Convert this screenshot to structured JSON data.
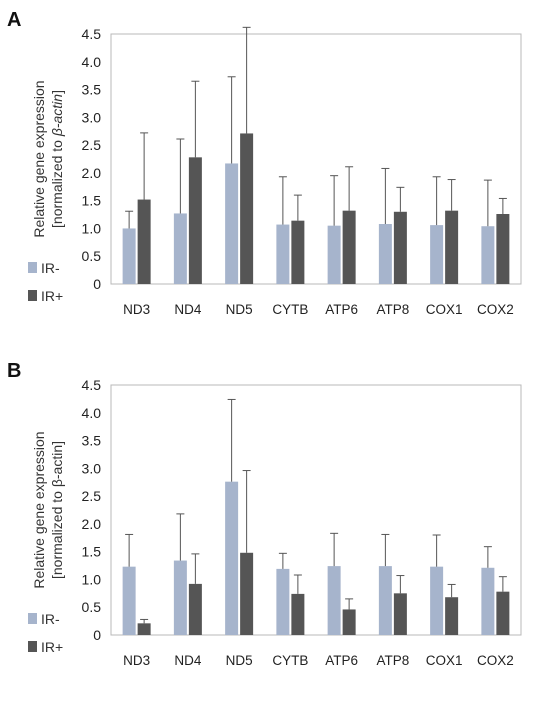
{
  "colors": {
    "ir_minus": "#a6b4cc",
    "ir_plus": "#555555",
    "frame": "#b8b8b8",
    "error_bar": "#555555"
  },
  "chart_data": [
    {
      "panel_label": "A",
      "type": "bar",
      "categories": [
        "ND3",
        "ND4",
        "ND5",
        "CYTB",
        "ATP6",
        "ATP8",
        "COX1",
        "COX2"
      ],
      "yticks": [
        "0",
        "0.5",
        "1.0",
        "1.5",
        "2.0",
        "2.5",
        "3.0",
        "3.5",
        "4.0",
        "4.5"
      ],
      "ylim": [
        0,
        4.5
      ],
      "ylabel_line1": "Relative gene expression",
      "ylabel_line2_prefix": "[normalized to ",
      "ylabel_line2_italic": "β-actin",
      "ylabel_line2_suffix": "]",
      "grid": false,
      "legend_position": "left",
      "series": [
        {
          "name": "IR-",
          "values": [
            1.0,
            1.27,
            2.17,
            1.07,
            1.05,
            1.08,
            1.06,
            1.04
          ],
          "errors": [
            0.31,
            1.34,
            1.56,
            0.86,
            0.9,
            1.0,
            0.87,
            0.83
          ]
        },
        {
          "name": "IR+",
          "values": [
            1.52,
            2.28,
            2.71,
            1.14,
            1.32,
            1.3,
            1.32,
            1.26
          ],
          "errors": [
            1.2,
            1.37,
            1.91,
            0.46,
            0.79,
            0.44,
            0.56,
            0.28
          ]
        }
      ]
    },
    {
      "panel_label": "B",
      "type": "bar",
      "categories": [
        "ND3",
        "ND4",
        "ND5",
        "CYTB",
        "ATP6",
        "ATP8",
        "COX1",
        "COX2"
      ],
      "yticks": [
        "0",
        "0.5",
        "1.0",
        "1.5",
        "2.0",
        "2.5",
        "3.0",
        "3.5",
        "4.0",
        "4.5"
      ],
      "ylim": [
        0,
        4.5
      ],
      "ylabel_line1": "Relative gene expression",
      "ylabel_line2_prefix": "[normalized to β-actin]",
      "ylabel_line2_italic": "",
      "ylabel_line2_suffix": "",
      "grid": false,
      "legend_position": "left",
      "series": [
        {
          "name": "IR-",
          "values": [
            1.23,
            1.34,
            2.76,
            1.19,
            1.24,
            1.24,
            1.23,
            1.21
          ],
          "errors": [
            0.58,
            0.84,
            1.48,
            0.28,
            0.59,
            0.57,
            0.57,
            0.38
          ]
        },
        {
          "name": "IR+",
          "values": [
            0.21,
            0.92,
            1.48,
            0.74,
            0.46,
            0.75,
            0.68,
            0.78
          ],
          "errors": [
            0.07,
            0.54,
            1.48,
            0.34,
            0.19,
            0.32,
            0.23,
            0.27
          ]
        }
      ]
    }
  ]
}
